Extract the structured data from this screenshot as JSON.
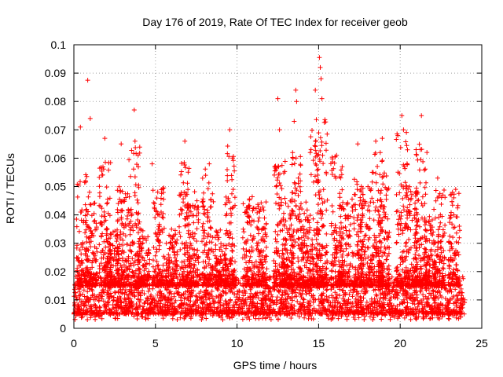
{
  "chart_data": {
    "type": "scatter",
    "title": "Day 176 of 2019, Rate Of TEC Index for receiver geob",
    "xlabel": "GPS time / hours",
    "ylabel": "ROTI / TECUs",
    "xlim": [
      0,
      25
    ],
    "ylim": [
      0,
      0.1
    ],
    "xticks": [
      0,
      5,
      10,
      15,
      20,
      25
    ],
    "xtick_labels": [
      "0",
      "5",
      "10",
      "15",
      "20",
      "25"
    ],
    "yticks": [
      0,
      0.01,
      0.02,
      0.03,
      0.04,
      0.05,
      0.06,
      0.07,
      0.08,
      0.09,
      0.1
    ],
    "ytick_labels": [
      "0",
      "0.01",
      "0.02",
      "0.03",
      "0.04",
      "0.05",
      "0.06",
      "0.07",
      "0.08",
      "0.09",
      "0.1"
    ],
    "grid": true,
    "marker": "plus",
    "series_color": "#ff0000",
    "data_range": {
      "x_start": 0.0,
      "x_end": 23.95,
      "y_floor": 0.003
    },
    "baseline_band": [
      0.005,
      0.015
    ],
    "notable_points": [
      {
        "x": 0.4,
        "y": 0.071
      },
      {
        "x": 0.85,
        "y": 0.0875
      },
      {
        "x": 1.0,
        "y": 0.074
      },
      {
        "x": 1.9,
        "y": 0.067
      },
      {
        "x": 2.9,
        "y": 0.065
      },
      {
        "x": 3.7,
        "y": 0.077
      },
      {
        "x": 3.75,
        "y": 0.066
      },
      {
        "x": 4.8,
        "y": 0.058
      },
      {
        "x": 6.8,
        "y": 0.066
      },
      {
        "x": 8.3,
        "y": 0.058
      },
      {
        "x": 9.55,
        "y": 0.07
      },
      {
        "x": 12.5,
        "y": 0.081
      },
      {
        "x": 12.6,
        "y": 0.07
      },
      {
        "x": 13.5,
        "y": 0.073
      },
      {
        "x": 13.6,
        "y": 0.084
      },
      {
        "x": 13.65,
        "y": 0.08
      },
      {
        "x": 14.8,
        "y": 0.084
      },
      {
        "x": 15.05,
        "y": 0.0955
      },
      {
        "x": 15.1,
        "y": 0.092
      },
      {
        "x": 15.15,
        "y": 0.088
      },
      {
        "x": 15.2,
        "y": 0.081
      },
      {
        "x": 16.1,
        "y": 0.061
      },
      {
        "x": 17.4,
        "y": 0.065
      },
      {
        "x": 18.5,
        "y": 0.066
      },
      {
        "x": 18.9,
        "y": 0.067
      },
      {
        "x": 20.1,
        "y": 0.075
      },
      {
        "x": 20.2,
        "y": 0.07
      },
      {
        "x": 21.3,
        "y": 0.075
      },
      {
        "x": 22.3,
        "y": 0.053
      },
      {
        "x": 23.4,
        "y": 0.049
      }
    ],
    "activity_bursts": [
      {
        "x": 0.5,
        "peak": 0.055
      },
      {
        "x": 1.1,
        "peak": 0.048
      },
      {
        "x": 1.9,
        "peak": 0.06
      },
      {
        "x": 2.4,
        "peak": 0.035
      },
      {
        "x": 3.0,
        "peak": 0.05
      },
      {
        "x": 3.7,
        "peak": 0.064
      },
      {
        "x": 4.3,
        "peak": 0.035
      },
      {
        "x": 5.2,
        "peak": 0.05
      },
      {
        "x": 6.0,
        "peak": 0.035
      },
      {
        "x": 6.8,
        "peak": 0.06
      },
      {
        "x": 7.3,
        "peak": 0.05
      },
      {
        "x": 8.2,
        "peak": 0.058
      },
      {
        "x": 9.0,
        "peak": 0.035
      },
      {
        "x": 9.6,
        "peak": 0.065
      },
      {
        "x": 10.7,
        "peak": 0.047
      },
      {
        "x": 11.5,
        "peak": 0.047
      },
      {
        "x": 12.6,
        "peak": 0.06
      },
      {
        "x": 13.1,
        "peak": 0.045
      },
      {
        "x": 13.6,
        "peak": 0.065
      },
      {
        "x": 14.2,
        "peak": 0.045
      },
      {
        "x": 14.8,
        "peak": 0.07
      },
      {
        "x": 15.2,
        "peak": 0.075
      },
      {
        "x": 16.1,
        "peak": 0.061
      },
      {
        "x": 16.6,
        "peak": 0.045
      },
      {
        "x": 17.4,
        "peak": 0.055
      },
      {
        "x": 17.9,
        "peak": 0.05
      },
      {
        "x": 18.6,
        "peak": 0.063
      },
      {
        "x": 19.0,
        "peak": 0.055
      },
      {
        "x": 20.1,
        "peak": 0.07
      },
      {
        "x": 20.7,
        "peak": 0.05
      },
      {
        "x": 21.3,
        "peak": 0.065
      },
      {
        "x": 21.8,
        "peak": 0.04
      },
      {
        "x": 22.4,
        "peak": 0.052
      },
      {
        "x": 23.3,
        "peak": 0.048
      }
    ]
  }
}
